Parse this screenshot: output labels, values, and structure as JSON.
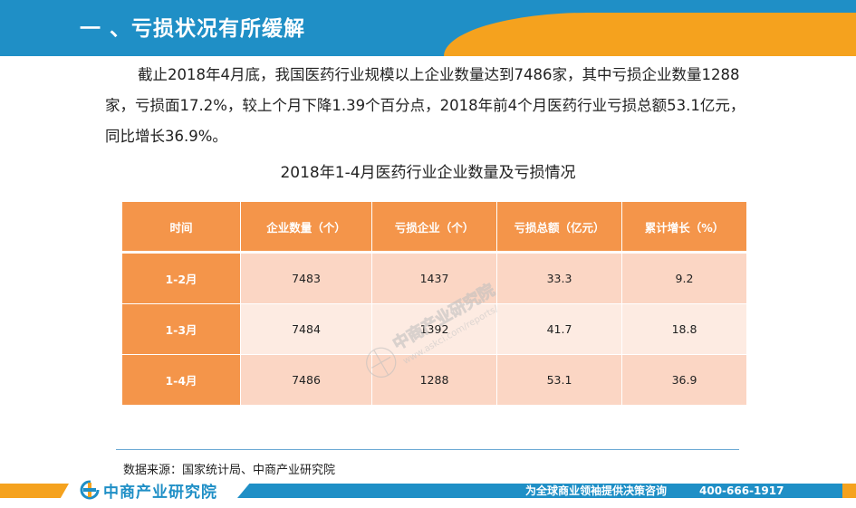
{
  "header": {
    "title": "一 、亏损状况有所缓解"
  },
  "paragraph": "截止2018年4月底，我国医药行业规模以上企业数量达到7486家，其中亏损企业数量1288家，亏损面17.2%，较上个月下降1.39个百分点，2018年前4个月医药行业亏损总额53.1亿元，同比增长36.9%。",
  "chart_data": {
    "type": "table",
    "title": "2018年1-4月医药行业企业数量及亏损情况",
    "columns": [
      "时间",
      "企业数量（个）",
      "亏损企业（个）",
      "亏损总额（亿元）",
      "累计增长（%）"
    ],
    "rows": [
      [
        "1-2月",
        "7483",
        "1437",
        "33.3",
        "9.2"
      ],
      [
        "1-3月",
        "7484",
        "1392",
        "41.7",
        "18.8"
      ],
      [
        "1-4月",
        "7486",
        "1288",
        "53.1",
        "36.9"
      ]
    ]
  },
  "watermark": {
    "name": "中商产业研究院",
    "url": "www.askci.com/reports/"
  },
  "source": "数据来源：国家统计局、中商产业研究院",
  "footer": {
    "brand": "中商产业研究院",
    "slogan": "为全球商业领袖提供决策咨询",
    "phone": "400-666-1917"
  },
  "colors": {
    "blue": "#1f8fc6",
    "orange": "#f5a21e",
    "table_header": "#f4954a",
    "cell_dark": "#fbd6c4",
    "cell_light": "#fdebe2"
  }
}
